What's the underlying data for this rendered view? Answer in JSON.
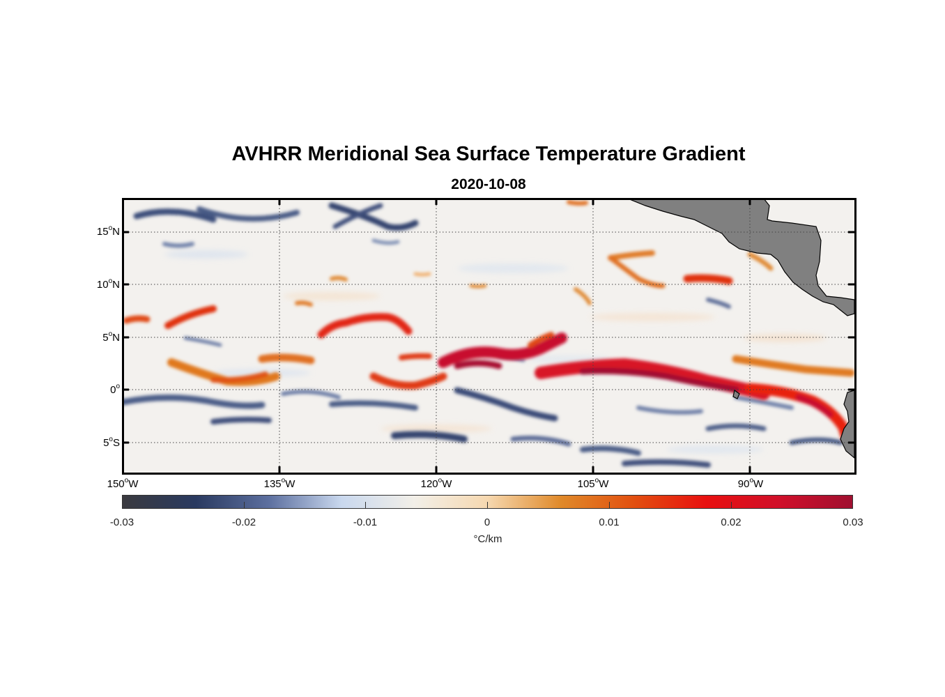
{
  "figure": {
    "title": "AVHRR Meridional Sea Surface Temperature Gradient",
    "subtitle": "2020-10-08"
  },
  "map": {
    "lat_labels": [
      {
        "value": "15",
        "hemi": "N"
      },
      {
        "value": "10",
        "hemi": "N"
      },
      {
        "value": "5",
        "hemi": "N"
      },
      {
        "value": "0",
        "hemi": ""
      },
      {
        "value": "5",
        "hemi": "S"
      }
    ],
    "lon_labels": [
      {
        "value": "150",
        "hemi": "W"
      },
      {
        "value": "135",
        "hemi": "W"
      },
      {
        "value": "120",
        "hemi": "W"
      },
      {
        "value": "105",
        "hemi": "W"
      },
      {
        "value": "90",
        "hemi": "W"
      }
    ],
    "lon_range": [
      -150,
      -80
    ],
    "lat_range": [
      -8,
      18
    ],
    "land_color": "#808080",
    "grid": "dotted"
  },
  "colorbar": {
    "ticks": [
      "-0.03",
      "-0.02",
      "-0.01",
      "0",
      "0.01",
      "0.02",
      "0.03"
    ],
    "units": "°C/km",
    "range": [
      -0.03,
      0.03
    ],
    "colors": [
      "#3a3a3f",
      "#2a3a60",
      "#5c6f9f",
      "#c9d8ee",
      "#f2efe8",
      "#f6d8b0",
      "#e08a2a",
      "#e25010",
      "#e81010",
      "#d0102a",
      "#a01030"
    ]
  }
}
